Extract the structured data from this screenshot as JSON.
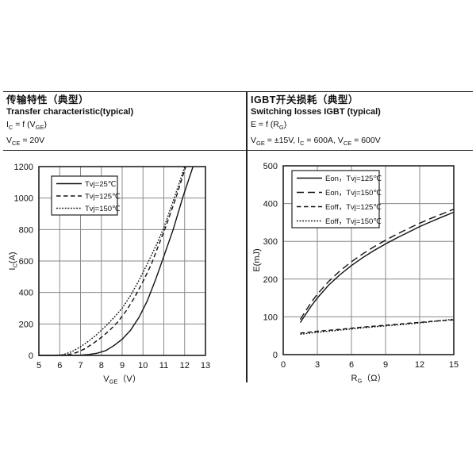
{
  "colors": {
    "text": "#111111",
    "axis": "#222222",
    "grid": "#8a8a8a",
    "curve": "#111111",
    "background": "#ffffff"
  },
  "left_header": {
    "title_zh": "传输特性（典型）",
    "title_en": "Transfer characteristic(typical)",
    "formula": "I~C~ = f (V~GE~)",
    "condition": "V~CE~ = 20V"
  },
  "right_header": {
    "title_zh": "IGBT开关损耗（典型）",
    "title_en": "Switching losses IGBT (typical)",
    "formula": "E = f (R~G~)",
    "condition": "V~GE~ = ±15V, I~C~ = 600A, V~CE~ = 600V"
  },
  "chart_data": [
    {
      "type": "line",
      "title": "Transfer characteristic(typical)",
      "xlabel": "V~GE~（V）",
      "ylabel": "I~C~(A)",
      "xlim": [
        5,
        13
      ],
      "ylim": [
        0,
        1200
      ],
      "xticks": [
        5,
        6,
        7,
        8,
        9,
        10,
        11,
        12,
        13
      ],
      "yticks": [
        0,
        200,
        400,
        600,
        800,
        1000,
        1200
      ],
      "grid": true,
      "legend_position": "upper-left-inside",
      "series": [
        {
          "name": "Tvj=25℃",
          "dash": "solid",
          "points": [
            [
              5,
              0
            ],
            [
              6.5,
              0
            ],
            [
              7.0,
              2
            ],
            [
              7.4,
              6
            ],
            [
              7.8,
              14
            ],
            [
              8.2,
              30
            ],
            [
              8.6,
              62
            ],
            [
              9.0,
              103
            ],
            [
              9.4,
              160
            ],
            [
              9.8,
              240
            ],
            [
              10.2,
              345
            ],
            [
              10.6,
              480
            ],
            [
              11.0,
              630
            ],
            [
              11.45,
              800
            ],
            [
              11.9,
              1000
            ],
            [
              12.4,
              1200
            ]
          ]
        },
        {
          "name": "Tvj=125℃",
          "dash": "dashed",
          "points": [
            [
              5,
              0
            ],
            [
              6.0,
              1
            ],
            [
              6.4,
              5
            ],
            [
              6.8,
              18
            ],
            [
              7.2,
              42
            ],
            [
              7.6,
              75
            ],
            [
              8.0,
              115
            ],
            [
              8.4,
              160
            ],
            [
              8.8,
              215
            ],
            [
              9.2,
              285
            ],
            [
              9.6,
              370
            ],
            [
              10.0,
              470
            ],
            [
              10.4,
              580
            ],
            [
              10.75,
              700
            ],
            [
              11.1,
              820
            ],
            [
              11.6,
              1010
            ],
            [
              12.05,
              1200
            ]
          ]
        },
        {
          "name": "Tvj=150℃",
          "dash": "finedot",
          "points": [
            [
              5,
              0
            ],
            [
              5.8,
              1
            ],
            [
              6.2,
              6
            ],
            [
              6.6,
              25
            ],
            [
              7.0,
              55
            ],
            [
              7.4,
              92
            ],
            [
              7.8,
              135
            ],
            [
              8.2,
              185
            ],
            [
              8.6,
              240
            ],
            [
              9.0,
              300
            ],
            [
              9.4,
              380
            ],
            [
              9.8,
              475
            ],
            [
              10.2,
              580
            ],
            [
              10.6,
              690
            ],
            [
              11.0,
              810
            ],
            [
              11.5,
              1000
            ],
            [
              12.0,
              1200
            ]
          ]
        }
      ]
    },
    {
      "type": "line",
      "title": "Switching losses IGBT (typical)",
      "xlabel": "R~G~（Ω）",
      "ylabel": "E(mJ)",
      "xlim": [
        0,
        15
      ],
      "ylim": [
        0,
        500
      ],
      "xticks": [
        0,
        3,
        6,
        9,
        12,
        15
      ],
      "yticks": [
        0,
        100,
        200,
        300,
        400,
        500
      ],
      "grid": true,
      "legend_position": "upper-left-inside",
      "series": [
        {
          "name": "Eon，Tvj=125℃",
          "dash": "solid",
          "points": [
            [
              1.5,
              85
            ],
            [
              2,
              108
            ],
            [
              2.5,
              130
            ],
            [
              3,
              150
            ],
            [
              4,
              184
            ],
            [
              5,
              212
            ],
            [
              6,
              236
            ],
            [
              7,
              257
            ],
            [
              8,
              276
            ],
            [
              9,
              293
            ],
            [
              10,
              309
            ],
            [
              11,
              324
            ],
            [
              12,
              339
            ],
            [
              13,
              352
            ],
            [
              14,
              365
            ],
            [
              15,
              377
            ]
          ]
        },
        {
          "name": "Eon，Tvj=150℃",
          "dash": "longdash",
          "points": [
            [
              1.5,
              93
            ],
            [
              2,
              117
            ],
            [
              2.5,
              140
            ],
            [
              3,
              160
            ],
            [
              4,
              194
            ],
            [
              5,
              222
            ],
            [
              6,
              246
            ],
            [
              7,
              267
            ],
            [
              8,
              286
            ],
            [
              9,
              303
            ],
            [
              10,
              319
            ],
            [
              11,
              334
            ],
            [
              12,
              348
            ],
            [
              13,
              361
            ],
            [
              14,
              373
            ],
            [
              15,
              385
            ]
          ]
        },
        {
          "name": "Eoff，Tvj=125℃",
          "dash": "dashed",
          "points": [
            [
              1.5,
              57
            ],
            [
              3,
              62
            ],
            [
              5,
              67
            ],
            [
              7,
              73
            ],
            [
              9,
              78
            ],
            [
              11,
              83
            ],
            [
              13,
              88
            ],
            [
              15,
              92
            ]
          ]
        },
        {
          "name": "Eoff，Tvj=150℃",
          "dash": "finedot",
          "points": [
            [
              1.5,
              54
            ],
            [
              3,
              59
            ],
            [
              5,
              65
            ],
            [
              7,
              71
            ],
            [
              9,
              76
            ],
            [
              11,
              81
            ],
            [
              13,
              87
            ],
            [
              15,
              94
            ]
          ]
        }
      ]
    }
  ]
}
